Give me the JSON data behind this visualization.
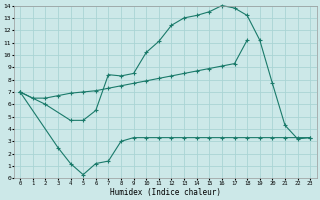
{
  "bg_color": "#cce8e8",
  "grid_color": "#aad4d4",
  "line_color": "#1a7a6a",
  "xlabel": "Humidex (Indice chaleur)",
  "xlim": [
    -0.5,
    23.5
  ],
  "ylim": [
    0,
    14
  ],
  "xticks": [
    0,
    1,
    2,
    3,
    4,
    5,
    6,
    7,
    8,
    9,
    10,
    11,
    12,
    13,
    14,
    15,
    16,
    17,
    18,
    19,
    20,
    21,
    22,
    23
  ],
  "yticks": [
    0,
    1,
    2,
    3,
    4,
    5,
    6,
    7,
    8,
    9,
    10,
    11,
    12,
    13,
    14
  ],
  "curve_top_x": [
    0,
    2,
    4,
    5,
    6,
    7,
    8,
    9,
    10,
    11,
    12,
    13,
    14,
    15,
    16,
    17,
    18,
    19,
    20,
    21,
    22,
    23
  ],
  "curve_top_y": [
    7.0,
    6.0,
    4.7,
    4.7,
    5.5,
    8.4,
    8.3,
    8.5,
    10.2,
    11.1,
    12.4,
    13.0,
    13.2,
    13.5,
    14.0,
    13.8,
    13.2,
    11.2,
    7.7,
    4.3,
    3.2,
    3.3
  ],
  "curve_mid_x": [
    0,
    1,
    2,
    3,
    4,
    5,
    6,
    7,
    8,
    9,
    10,
    11,
    12,
    13,
    14,
    15,
    16,
    17,
    18
  ],
  "curve_mid_y": [
    7.0,
    6.5,
    6.5,
    6.7,
    6.9,
    7.0,
    7.1,
    7.3,
    7.5,
    7.7,
    7.9,
    8.1,
    8.3,
    8.5,
    8.7,
    8.9,
    9.1,
    9.3,
    11.2
  ],
  "curve_bot_x": [
    0,
    3,
    4,
    5,
    6,
    7,
    8,
    9,
    10,
    11,
    12,
    13,
    14,
    15,
    16,
    17,
    18,
    19,
    20,
    21,
    22,
    23
  ],
  "curve_bot_y": [
    7.0,
    2.5,
    1.2,
    0.3,
    1.2,
    1.4,
    3.0,
    3.3,
    3.3,
    3.3,
    3.3,
    3.3,
    3.3,
    3.3,
    3.3,
    3.3,
    3.3,
    3.3,
    3.3,
    3.3,
    3.3,
    3.3
  ]
}
